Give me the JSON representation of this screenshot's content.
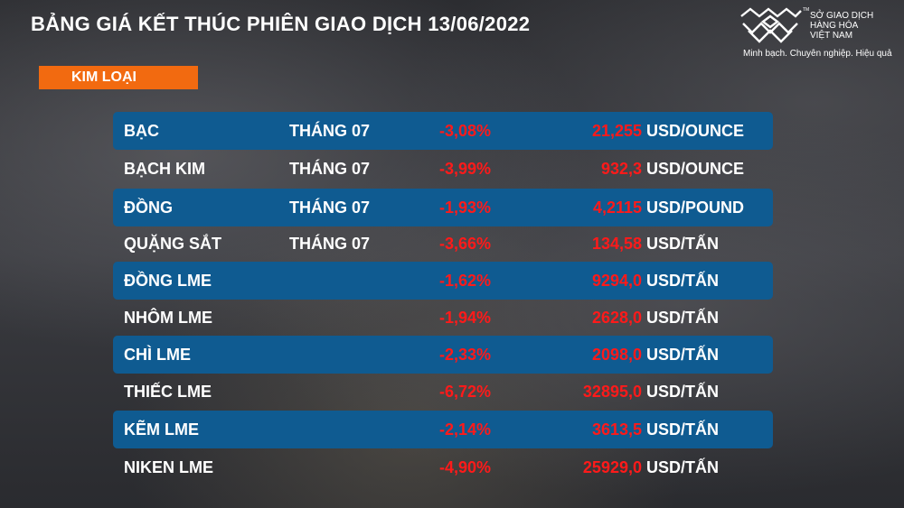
{
  "title": "BẢNG GIÁ KẾT THÚC PHIÊN GIAO DỊCH 13/06/2022",
  "logo": {
    "line1": "SỞ GIAO DỊCH",
    "line2": "HÀNG HÓA",
    "line3": "VIỆT NAM",
    "tm": "TM",
    "slogan": "Minh bạch. Chuyên nghiệp. Hiệu quả"
  },
  "category": "KIM LOẠI",
  "colors": {
    "band": "#0f5b91",
    "negative": "#ff1a1a",
    "category": "#f26a10"
  },
  "rows": [
    {
      "name": "BẠC",
      "month": "THÁNG 07",
      "change": "-3,08%",
      "price": "21,255",
      "unit": "USD/OUNCE"
    },
    {
      "name": "BẠCH KIM",
      "month": "THÁNG 07",
      "change": "-3,99%",
      "price": "932,3",
      "unit": "USD/OUNCE"
    },
    {
      "name": "ĐỒNG",
      "month": "THÁNG 07",
      "change": "-1,93%",
      "price": "4,2115",
      "unit": "USD/POUND"
    },
    {
      "name": "QUẶNG SẮT",
      "month": "THÁNG 07",
      "change": "-3,66%",
      "price": "134,58",
      "unit": "USD/TẤN"
    },
    {
      "name": "ĐỒNG LME",
      "month": "",
      "change": "-1,62%",
      "price": "9294,0",
      "unit": "USD/TẤN"
    },
    {
      "name": "NHÔM LME",
      "month": "",
      "change": "-1,94%",
      "price": "2628,0",
      "unit": "USD/TẤN"
    },
    {
      "name": "CHÌ LME",
      "month": "",
      "change": "-2,33%",
      "price": "2098,0",
      "unit": "USD/TẤN"
    },
    {
      "name": "THIẾC LME",
      "month": "",
      "change": "-6,72%",
      "price": "32895,0",
      "unit": "USD/TẤN"
    },
    {
      "name": "KẼM LME",
      "month": "",
      "change": "-2,14%",
      "price": "3613,5",
      "unit": "USD/TẤN"
    },
    {
      "name": "NIKEN LME",
      "month": "",
      "change": "-4,90%",
      "price": "25929,0",
      "unit": "USD/TẤN"
    }
  ]
}
